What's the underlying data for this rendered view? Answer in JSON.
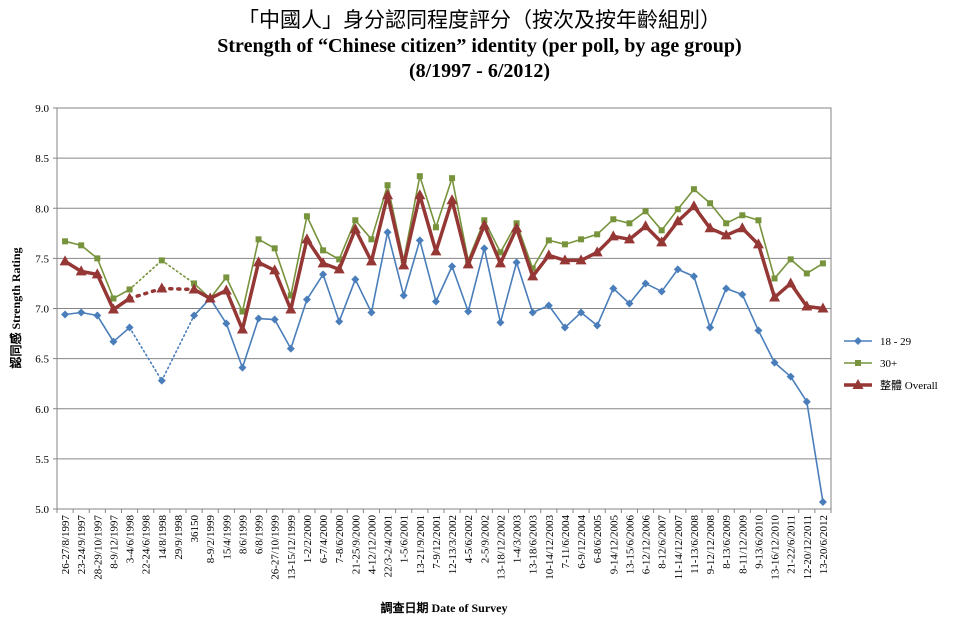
{
  "titles": {
    "zh": "「中國人」身分認同程度評分（按次及按年齡組別）",
    "en": "Strength of “Chinese citizen” identity (per poll, by age group)",
    "range": "(8/1997 - 6/2012)"
  },
  "chart_data": {
    "type": "line",
    "title": "Strength of “Chinese citizen” identity (per poll, by age group)",
    "xlabel": "調查日期 Date of Survey",
    "ylabel": "認同感 Strength Rating",
    "ylim": [
      5.0,
      9.0
    ],
    "yticks": [
      "5.0",
      "5.5",
      "6.0",
      "6.5",
      "7.0",
      "7.5",
      "8.0",
      "8.5",
      "9.0"
    ],
    "grid": true,
    "legend_position": "right",
    "categories": [
      "26-27/8/1997",
      "23-24/9/1997",
      "28-29/10/1997",
      "8-9/12/1997",
      "3-4/6/1998",
      "22-24/6/1998",
      "14/8/1998",
      "29/9/1998",
      "36150",
      "8-9/2/1999",
      "15/4/1999",
      "8/6/1999",
      "6/8/1999",
      "26-27/10/1999",
      "13-15/12/1999",
      "1-2/2/2000",
      "6-7/4/2000",
      "7-8/6/2000",
      "21-25/9/2000",
      "4-12/12/2000",
      "22/3-2/4/2001",
      "1-5/6/2001",
      "13-21/9/2001",
      "7-9/12/2001",
      "12-13/3/2002",
      "4-5/6/2002",
      "2-5/9/2002",
      "13-18/12/2002",
      "1-4/3/2003",
      "13-18/6/2003",
      "10-14/12/2003",
      "7-11/6/2004",
      "6-9/12/2004",
      "6-8/6/2005",
      "9-14/12/2005",
      "13-15/6/2006",
      "6-12/12/2006",
      "8-12/6/2007",
      "11-14/12/2007",
      "11-13/6/2008",
      "9-12/12/2008",
      "8-13/6/2009",
      "8-11/12/2009",
      "9-13/6/2010",
      "13-16/12/2010",
      "21-22/6/2011",
      "12-20/12/2011",
      "13-20/6/2012"
    ],
    "series": [
      {
        "name": "18 - 29",
        "color": "#4a7ebb",
        "marker": "diamond",
        "values": [
          6.94,
          6.96,
          6.93,
          6.67,
          6.81,
          null,
          6.28,
          null,
          6.93,
          7.1,
          6.85,
          6.41,
          6.9,
          6.89,
          6.6,
          7.09,
          7.34,
          6.87,
          7.29,
          6.96,
          7.76,
          7.13,
          7.68,
          7.07,
          7.42,
          6.97,
          7.6,
          6.86,
          7.46,
          6.96,
          7.03,
          6.81,
          6.96,
          6.83,
          7.2,
          7.05,
          7.25,
          7.17,
          7.39,
          7.32,
          6.81,
          7.2,
          7.14,
          6.78,
          6.46,
          6.32,
          6.07,
          5.07
        ]
      },
      {
        "name": "30+",
        "color": "#77933c",
        "marker": "square",
        "values": [
          7.67,
          7.63,
          7.5,
          7.1,
          7.19,
          null,
          7.48,
          null,
          7.25,
          7.1,
          7.31,
          6.97,
          7.69,
          7.6,
          7.13,
          7.92,
          7.58,
          7.49,
          7.88,
          7.69,
          8.23,
          7.48,
          8.32,
          7.81,
          8.3,
          7.48,
          7.88,
          7.56,
          7.85,
          7.4,
          7.68,
          7.64,
          7.69,
          7.74,
          7.89,
          7.85,
          7.97,
          7.78,
          7.99,
          8.19,
          8.05,
          7.85,
          7.93,
          7.88,
          7.3,
          7.49,
          7.35,
          7.45
        ]
      },
      {
        "name": "整體 Overall",
        "color": "#953735",
        "marker": "triangle",
        "values": [
          7.47,
          7.37,
          7.34,
          6.99,
          7.1,
          null,
          7.2,
          null,
          7.19,
          7.1,
          7.18,
          6.79,
          7.46,
          7.38,
          6.99,
          7.69,
          7.45,
          7.39,
          7.79,
          7.47,
          8.13,
          7.43,
          8.13,
          7.57,
          8.08,
          7.44,
          7.83,
          7.45,
          7.8,
          7.32,
          7.53,
          7.48,
          7.48,
          7.56,
          7.72,
          7.69,
          7.82,
          7.66,
          7.87,
          8.02,
          7.8,
          7.73,
          7.8,
          7.64,
          7.11,
          7.25,
          7.02,
          7.0
        ]
      }
    ]
  }
}
